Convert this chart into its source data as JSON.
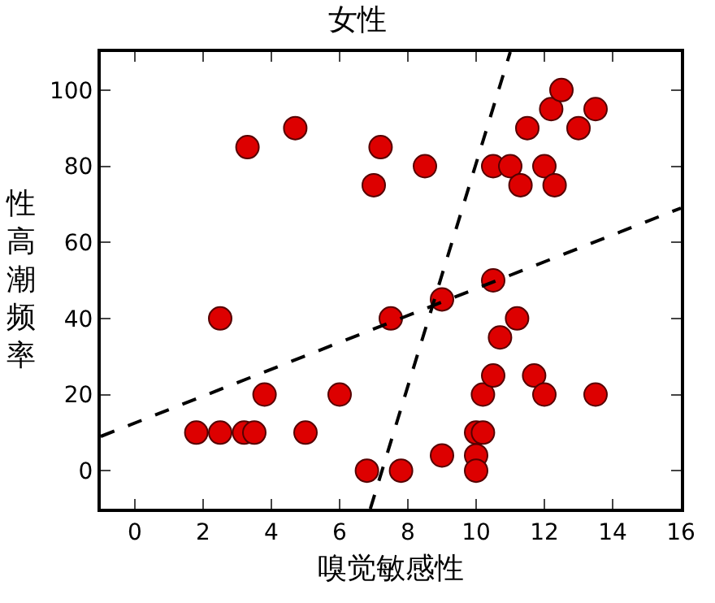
{
  "chart_data": {
    "type": "scatter",
    "title": "女性",
    "xlabel": "嗅觉敏感性",
    "ylabel": "性高潮频率",
    "xlim": [
      -1,
      16
    ],
    "xticks": [
      0,
      2,
      4,
      6,
      8,
      10,
      12,
      14,
      16
    ],
    "ylim": [
      -10,
      110
    ],
    "yticks": [
      0,
      20,
      40,
      60,
      80,
      100
    ],
    "series": [
      {
        "marker": "circle",
        "color": "#dd0000",
        "x": [
          1.8,
          2.5,
          2.5,
          3.2,
          3.5,
          3.3,
          3.8,
          4.7,
          5,
          6,
          6.8,
          7,
          7.2,
          7.5,
          7.8,
          8.5,
          9,
          9,
          10,
          10,
          10,
          10.2,
          10.2,
          10.5,
          10.5,
          10.5,
          10.7,
          11,
          11.2,
          11.3,
          11.5,
          11.7,
          12,
          12,
          12.2,
          12.3,
          12.5,
          13,
          13.5,
          13.5
        ],
        "values": [
          10,
          10,
          40,
          10,
          10,
          85,
          20,
          90,
          10,
          20,
          0,
          75,
          85,
          40,
          0,
          80,
          45,
          4,
          10,
          4,
          0,
          10,
          20,
          25,
          50,
          80,
          35,
          80,
          40,
          75,
          90,
          25,
          80,
          20,
          95,
          75,
          100,
          90,
          95,
          20
        ]
      },
      {
        "type": "line",
        "line_style": "dashed",
        "color": "#000000",
        "x": [
          -1,
          16
        ],
        "values": [
          9,
          69
        ]
      },
      {
        "type": "line",
        "line_style": "dashed",
        "color": "#000000",
        "x": [
          6.9,
          11.0
        ],
        "values": [
          -10,
          110
        ]
      }
    ]
  }
}
